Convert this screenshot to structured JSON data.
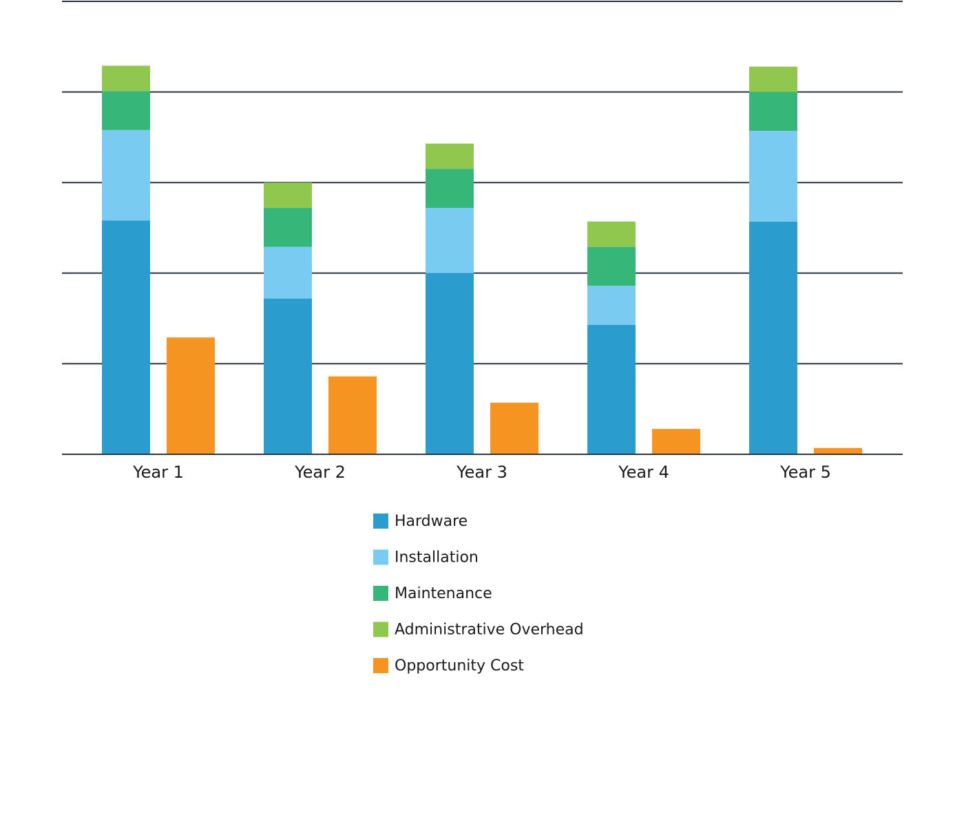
{
  "chart_data": {
    "type": "bar",
    "title": "",
    "xlabel": "",
    "ylabel": "",
    "grid": true,
    "legend_position": "bottom-center",
    "ylim": [
      0,
      5
    ],
    "categories": [
      "Year 1",
      "Year 2",
      "Year 3",
      "Year 4",
      "Year 5"
    ],
    "stacks": [
      {
        "stack": "total",
        "series": [
          {
            "name": "Hardware",
            "color": "#2a9dce",
            "values": [
              2.58,
              1.72,
              2.0,
              1.43,
              2.57
            ]
          },
          {
            "name": "Installation",
            "color": "#7acbf2",
            "values": [
              1.0,
              0.57,
              0.72,
              0.43,
              1.0
            ]
          },
          {
            "name": "Maintenance",
            "color": "#37b679",
            "values": [
              0.43,
              0.43,
              0.43,
              0.43,
              0.43
            ]
          },
          {
            "name": "Administrative Overhead",
            "color": "#8fc74f",
            "values": [
              0.28,
              0.28,
              0.28,
              0.28,
              0.28
            ]
          }
        ]
      },
      {
        "stack": "opportunity",
        "series": [
          {
            "name": "Opportunity Cost",
            "color": "#f59420",
            "values": [
              1.29,
              0.86,
              0.57,
              0.28,
              0.07
            ]
          }
        ]
      }
    ]
  }
}
